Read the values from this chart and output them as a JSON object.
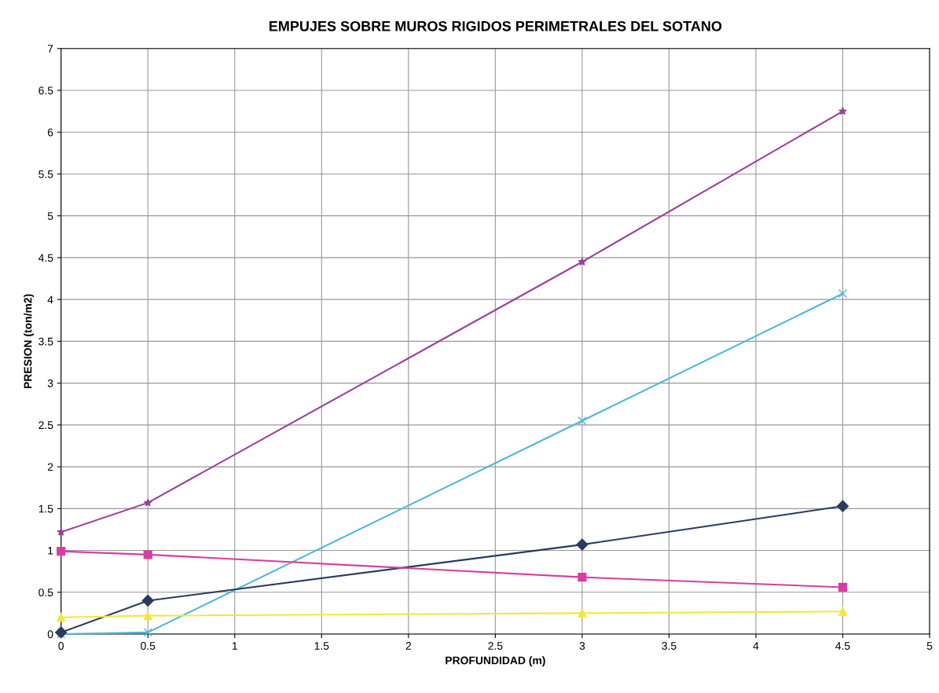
{
  "chart_data": {
    "type": "line",
    "title": "EMPUJES SOBRE MUROS RIGIDOS PERIMETRALES DEL SOTANO",
    "xlabel": "PROFUNDIDAD (m)",
    "ylabel": "PRESION (ton/m2)",
    "x": [
      0,
      0.5,
      3,
      4.5
    ],
    "series": [
      {
        "color": "#9b3f9b",
        "marker": "star",
        "values": [
          1.22,
          1.57,
          4.45,
          6.25
        ]
      },
      {
        "color": "#4fb8d8",
        "marker": "cross",
        "values": [
          0,
          0.02,
          2.55,
          4.07
        ]
      },
      {
        "color": "#2b3a5e",
        "marker": "diamond",
        "values": [
          0.02,
          0.4,
          1.07,
          1.53
        ]
      },
      {
        "color": "#d63fa0",
        "marker": "square",
        "values": [
          0.99,
          0.95,
          0.68,
          0.56
        ]
      },
      {
        "color": "#f0e840",
        "marker": "triangle",
        "values": [
          0.2,
          0.22,
          0.25,
          0.27
        ]
      }
    ],
    "xlim": [
      0,
      5
    ],
    "xticks": [
      0,
      0.5,
      1,
      1.5,
      2,
      2.5,
      3,
      3.5,
      4,
      4.5,
      5
    ],
    "ylim": [
      0,
      7
    ],
    "yticks": [
      0,
      0.5,
      1,
      1.5,
      2,
      2.5,
      3,
      3.5,
      4,
      4.5,
      5,
      5.5,
      6,
      6.5,
      7
    ],
    "grid": true,
    "line_style": "solid"
  }
}
